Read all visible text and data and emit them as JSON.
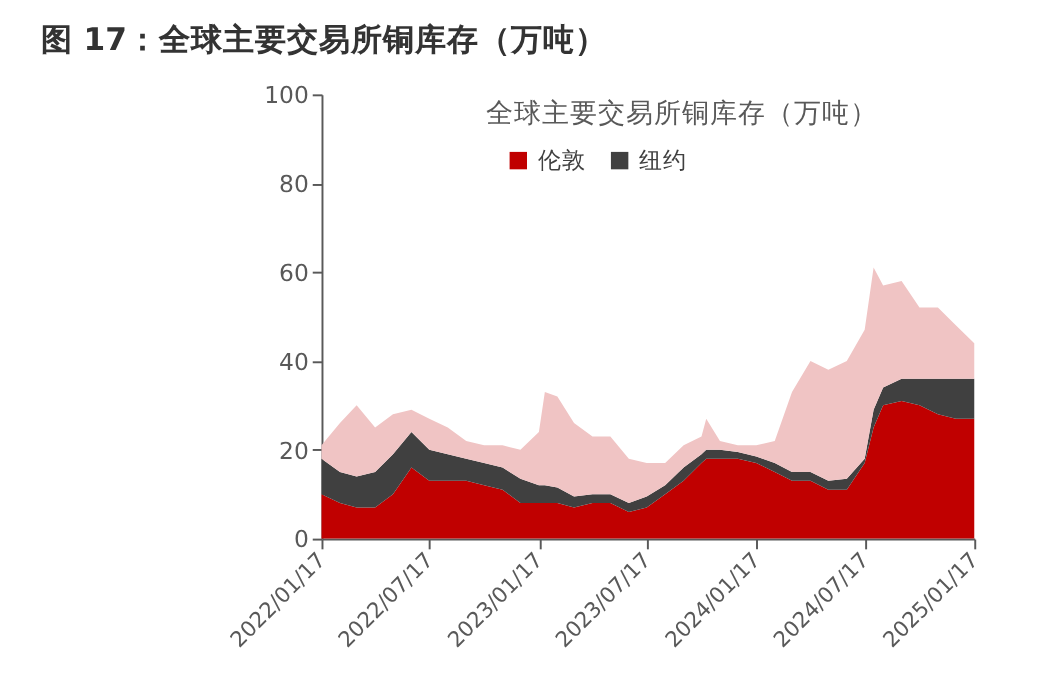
{
  "chart_data": {
    "type": "area",
    "stacked": true,
    "title": "图 17：全球主要交易所铜库存（万吨）",
    "subtitle": "全球主要交易所铜库存（万吨）",
    "x": [
      "2022-01-17",
      "2022-02-17",
      "2022-03-17",
      "2022-04-17",
      "2022-05-17",
      "2022-06-17",
      "2022-07-17",
      "2022-08-17",
      "2022-09-17",
      "2022-10-17",
      "2022-11-17",
      "2022-12-17",
      "2023-01-17",
      "2023-01-27",
      "2023-02-17",
      "2023-03-17",
      "2023-04-17",
      "2023-05-17",
      "2023-06-17",
      "2023-07-17",
      "2023-08-17",
      "2023-09-17",
      "2023-10-17",
      "2023-10-25",
      "2023-11-17",
      "2023-12-17",
      "2024-01-17",
      "2024-02-17",
      "2024-03-17",
      "2024-04-17",
      "2024-05-17",
      "2024-06-17",
      "2024-07-17",
      "2024-08-01",
      "2024-08-17",
      "2024-09-17",
      "2024-10-17",
      "2024-11-17",
      "2024-12-17",
      "2025-01-17"
    ],
    "series": [
      {
        "name": "伦敦",
        "color": "#c00000",
        "values": [
          10,
          8,
          7,
          7,
          10,
          16,
          13,
          13,
          13,
          12,
          11,
          8,
          8,
          8,
          8,
          7,
          8,
          8,
          6,
          7,
          10,
          13,
          17,
          18,
          18,
          18,
          17,
          15,
          13,
          13,
          11,
          11,
          17,
          25,
          30,
          31,
          30,
          28,
          27,
          27
        ]
      },
      {
        "name": "纽约",
        "color": "#404040",
        "values": [
          8,
          7,
          7,
          8,
          9,
          8,
          7,
          6,
          5,
          5,
          5,
          5.5,
          4,
          4,
          3.5,
          2.5,
          2,
          2,
          2,
          2.5,
          2,
          3,
          2,
          2,
          2,
          1.5,
          1.5,
          2,
          2,
          2,
          2,
          2.5,
          1,
          4,
          4,
          5,
          6,
          8,
          9,
          9
        ]
      },
      {
        "color": "#f0c4c4",
        "values": [
          3,
          11,
          16,
          10,
          9,
          5,
          7,
          6,
          4,
          4,
          5,
          6.5,
          12,
          21,
          20.5,
          16.5,
          13,
          13,
          10,
          7.5,
          5,
          5,
          4,
          7,
          2,
          1.5,
          2.5,
          5,
          18,
          25,
          25,
          26.5,
          29,
          32,
          23,
          22,
          16,
          16,
          12,
          8
        ]
      }
    ],
    "xlim": [
      "2022-01-17",
      "2025-01-17"
    ],
    "xticks": [
      {
        "value": "2022-01-17",
        "label": "2022/01/17"
      },
      {
        "value": "2022-07-17",
        "label": "2022/07/17"
      },
      {
        "value": "2023-01-17",
        "label": "2023/01/17"
      },
      {
        "value": "2023-07-17",
        "label": "2023/07/17"
      },
      {
        "value": "2024-01-17",
        "label": "2024/01/17"
      },
      {
        "value": "2024-07-17",
        "label": "2024/07/17"
      },
      {
        "value": "2025-01-17",
        "label": "2025/01/17"
      }
    ],
    "ylim": [
      0,
      100
    ],
    "yticks": [
      0,
      20,
      40,
      60,
      80,
      100
    ],
    "legend": "top",
    "grid": false
  }
}
